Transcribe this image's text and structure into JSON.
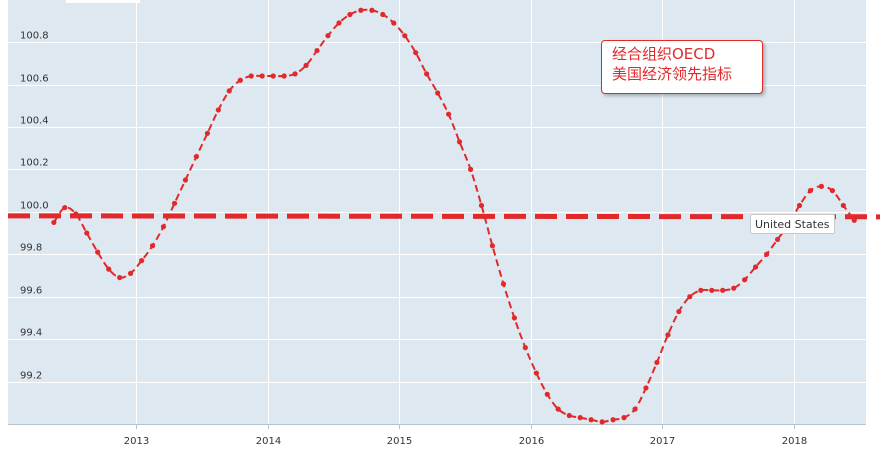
{
  "chart_data": {
    "type": "line",
    "x_ticks": [
      "2013",
      "2014",
      "2015",
      "2016",
      "2017",
      "2018"
    ],
    "y_ticks": [
      "99.2",
      "99.4",
      "99.6",
      "99.8",
      "100.0",
      "100.2",
      "100.4",
      "100.6",
      "100.8"
    ],
    "ylim": [
      99.0,
      100.97
    ],
    "xlim": [
      2012.0,
      2018.6
    ],
    "grid": true,
    "series": [
      {
        "name": "United States",
        "color": "#e1292b",
        "x": [
          2012.375,
          2012.458,
          2012.542,
          2012.625,
          2012.708,
          2012.792,
          2012.875,
          2012.958,
          2013.042,
          2013.125,
          2013.208,
          2013.292,
          2013.375,
          2013.458,
          2013.542,
          2013.625,
          2013.708,
          2013.792,
          2013.875,
          2013.958,
          2014.042,
          2014.125,
          2014.208,
          2014.292,
          2014.375,
          2014.458,
          2014.542,
          2014.625,
          2014.708,
          2014.792,
          2014.875,
          2014.958,
          2015.042,
          2015.125,
          2015.208,
          2015.292,
          2015.375,
          2015.458,
          2015.542,
          2015.625,
          2015.708,
          2015.792,
          2015.875,
          2015.958,
          2016.042,
          2016.125,
          2016.208,
          2016.292,
          2016.375,
          2016.458,
          2016.542,
          2016.625,
          2016.708,
          2016.792,
          2016.875,
          2016.958,
          2017.042,
          2017.125,
          2017.208,
          2017.292,
          2017.375,
          2017.458,
          2017.542,
          2017.625,
          2017.708,
          2017.792,
          2017.875,
          2017.958,
          2018.042,
          2018.125,
          2018.208,
          2018.292,
          2018.375,
          2018.458
        ],
        "values": [
          99.95,
          100.02,
          99.99,
          99.9,
          99.81,
          99.73,
          99.69,
          99.71,
          99.77,
          99.84,
          99.93,
          100.04,
          100.15,
          100.26,
          100.37,
          100.48,
          100.57,
          100.62,
          100.64,
          100.64,
          100.64,
          100.64,
          100.65,
          100.69,
          100.76,
          100.83,
          100.89,
          100.93,
          100.95,
          100.95,
          100.93,
          100.89,
          100.83,
          100.75,
          100.65,
          100.56,
          100.46,
          100.33,
          100.2,
          100.03,
          99.84,
          99.66,
          99.5,
          99.36,
          99.24,
          99.14,
          99.07,
          99.04,
          99.03,
          99.02,
          99.01,
          99.02,
          99.03,
          99.07,
          99.17,
          99.29,
          99.42,
          99.53,
          99.6,
          99.63,
          99.63,
          99.63,
          99.64,
          99.68,
          99.74,
          99.8,
          99.87,
          99.94,
          100.03,
          100.1,
          100.12,
          100.1,
          100.03,
          99.96
        ]
      }
    ],
    "reference_line": {
      "value": 100.0,
      "style": "dashed",
      "color": "#e1292b"
    },
    "annotation": {
      "lines": [
        "经合组织OECD",
        "美国经济领先指标"
      ],
      "color": "#e1292b"
    },
    "tooltip": "United States",
    "background_color": "#dde8f0",
    "grid_color": "#ffffff"
  }
}
